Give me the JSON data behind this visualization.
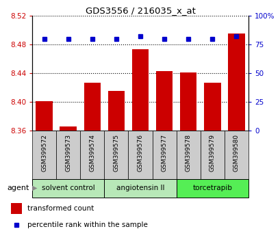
{
  "title": "GDS3556 / 216035_x_at",
  "samples": [
    "GSM399572",
    "GSM399573",
    "GSM399574",
    "GSM399575",
    "GSM399576",
    "GSM399577",
    "GSM399578",
    "GSM399579",
    "GSM399580"
  ],
  "bar_values": [
    8.401,
    8.366,
    8.427,
    8.415,
    8.473,
    8.443,
    8.441,
    8.427,
    8.495
  ],
  "percentile_values": [
    80,
    80,
    80,
    80,
    82,
    80,
    80,
    80,
    82
  ],
  "ylim_left": [
    8.36,
    8.52
  ],
  "ylim_right": [
    0,
    100
  ],
  "yticks_left": [
    8.36,
    8.4,
    8.44,
    8.48,
    8.52
  ],
  "yticks_right": [
    0,
    25,
    50,
    75,
    100
  ],
  "ytick_labels_right": [
    "0",
    "25",
    "50",
    "75",
    "100%"
  ],
  "bar_color": "#cc0000",
  "dot_color": "#0000cc",
  "bar_bottom": 8.36,
  "agent_groups": [
    {
      "label": "solvent control",
      "start": 0,
      "end": 3
    },
    {
      "label": "angiotensin II",
      "start": 3,
      "end": 6
    },
    {
      "label": "torcetrapib",
      "start": 6,
      "end": 9
    }
  ],
  "group_colors": [
    "#b8e8b8",
    "#b8e8b8",
    "#55ee55"
  ],
  "sample_box_color": "#cccccc",
  "legend_bar_label": "transformed count",
  "legend_dot_label": "percentile rank within the sample",
  "agent_label": "agent",
  "tick_color_left": "#cc0000",
  "tick_color_right": "#0000cc",
  "bg_color": "#ffffff"
}
